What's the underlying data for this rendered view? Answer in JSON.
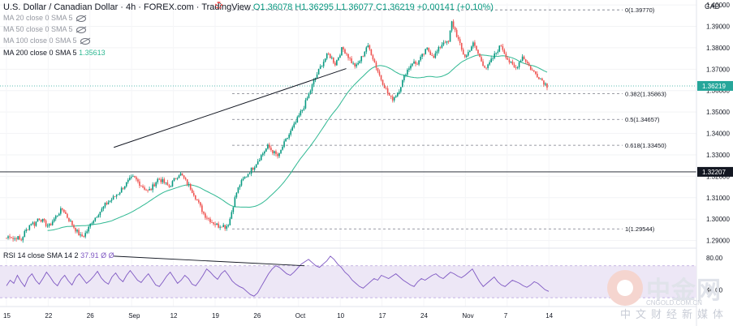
{
  "header": {
    "title": "U.S. Dollar / Canadian Dollar · 4h · FOREX.com · TradingView",
    "ohlc": "O1.36078 H1.36295 L1.36077 C1.36219 +0.00141 (+0.10%)"
  },
  "indicators": [
    {
      "label": "MA 20 close 0 SMA 5"
    },
    {
      "label": "MA 50 close 0 SMA 5"
    },
    {
      "label": "MA 100 close 0 SMA 5"
    }
  ],
  "ma200": {
    "label": "MA 200 close 0 SMA 5",
    "value": "1.35613"
  },
  "rsi_header": {
    "label": "RSI 14 close SMA 14 2",
    "value": "37.91 Ø Ø"
  },
  "currency": "CAD",
  "watermark": {
    "zh": "中金网",
    "url": "CNGOLD.COM.CN",
    "sub": "中文财经新媒体"
  },
  "colors": {
    "up": "#089981",
    "down": "#ef5350",
    "ma200": "#2fb892",
    "rsi": "#7e57c2",
    "rsi_band": "#ede7f6",
    "price_tag": "#26a69a"
  },
  "chart_data": {
    "type": "candlestick",
    "y_ticks": [
      "1.40000",
      "1.39000",
      "1.38000",
      "1.37000",
      "1.36000",
      "1.35000",
      "1.34000",
      "1.33000",
      "1.32000",
      "1.31000",
      "1.30000",
      "1.29000"
    ],
    "ylim": [
      1.2872,
      1.4008
    ],
    "x_ticks": [
      "15",
      "22",
      "26",
      "Sep",
      "12",
      "19",
      "26",
      "Oct",
      "10",
      "17",
      "24",
      "Nov",
      "7",
      "14"
    ],
    "last_price": "1.36219",
    "horizontal_level": "1.32207",
    "fibonacci": [
      {
        "label": "0(1.39770)",
        "value": 1.3977
      },
      {
        "label": "0.382(1.35863)",
        "value": 1.35863
      },
      {
        "label": "0.5(1.34657)",
        "value": 1.34657
      },
      {
        "label": "0.618(1.33450)",
        "value": 1.3345
      },
      {
        "label": "1(1.29544)",
        "value": 1.29544
      }
    ],
    "trendline": {
      "from": {
        "date": "Sep 20",
        "value": 1.3335
      },
      "to": {
        "date": "Oct 28",
        "value": 1.3703
      }
    },
    "price_path": [
      [
        1.2912,
        1.2925,
        1.2905,
        1.2918,
        1.2896,
        1.2935,
        1.2958,
        1.2985,
        1.2975,
        1.3008,
        1.2995,
        1.2978,
        1.2965,
        1.299
      ],
      [
        1.3012,
        1.3035,
        1.3048,
        1.3015,
        1.299,
        1.2965,
        1.294,
        1.2918,
        1.2925,
        1.295,
        1.2985,
        1.3005,
        1.3028,
        1.3045
      ],
      [
        1.3068,
        1.3082,
        1.3095,
        1.3112,
        1.3128,
        1.315,
        1.3168,
        1.3185,
        1.3195,
        1.3178,
        1.316,
        1.3145,
        1.313,
        1.3142
      ],
      [
        1.3168,
        1.319,
        1.3178,
        1.3165,
        1.315,
        1.3172,
        1.3195,
        1.3215,
        1.3195,
        1.317,
        1.3148,
        1.312,
        1.3085,
        1.3052
      ],
      [
        1.302,
        1.3005,
        1.299,
        1.2978,
        1.2968,
        1.2975,
        1.2962,
        1.2985,
        1.3055,
        1.312,
        1.316,
        1.3185,
        1.3205,
        1.3225
      ],
      [
        1.3245,
        1.327,
        1.3295,
        1.3318,
        1.334,
        1.3322,
        1.3305,
        1.329,
        1.3335,
        1.3365,
        1.3395,
        1.3425,
        1.3455,
        1.349
      ],
      [
        1.352,
        1.356,
        1.36,
        1.3645,
        1.368,
        1.3715,
        1.3745,
        1.377,
        1.3752,
        1.3725,
        1.376,
        1.3798,
        1.378,
        1.3752
      ],
      [
        1.3725,
        1.3712,
        1.374,
        1.377,
        1.381,
        1.3785,
        1.374,
        1.3695,
        1.3655,
        1.362,
        1.3585,
        1.3558,
        1.3575,
        1.36
      ],
      [
        1.364,
        1.3685,
        1.371,
        1.3735,
        1.3722,
        1.3745,
        1.377,
        1.3795,
        1.3775,
        1.376,
        1.3785,
        1.3812,
        1.3835,
        1.3815
      ],
      [
        1.392,
        1.388,
        1.383,
        1.378,
        1.3755,
        1.379,
        1.382,
        1.379,
        1.3752,
        1.372,
        1.3705,
        1.3735,
        1.3762,
        1.379
      ],
      [
        1.3812,
        1.3775,
        1.3742,
        1.372,
        1.37,
        1.373,
        1.376,
        1.374,
        1.371,
        1.369,
        1.3675,
        1.366,
        1.364,
        1.3622
      ]
    ],
    "rsi": {
      "ylim": [
        20,
        90
      ],
      "ticks": [
        "80.00",
        "40.00"
      ],
      "band": [
        30,
        70
      ],
      "values": [
        45,
        52,
        48,
        58,
        50,
        44,
        55,
        60,
        52,
        47,
        54,
        62,
        56,
        49,
        45,
        53,
        58,
        51,
        46,
        55,
        60,
        54,
        48,
        52,
        57,
        63,
        55,
        50,
        47,
        56,
        61,
        54,
        50,
        58,
        64,
        58,
        52,
        49,
        55,
        60,
        53,
        46,
        44,
        50,
        57,
        62,
        55,
        48,
        52,
        58,
        54,
        47,
        45,
        51,
        58,
        66,
        62,
        57,
        53,
        60,
        64,
        58,
        51,
        47,
        44,
        42,
        38,
        34,
        32,
        36,
        44,
        52,
        60,
        66,
        70,
        68,
        64,
        60,
        58,
        62,
        67,
        72,
        75,
        78,
        74,
        70,
        68,
        72,
        76,
        82,
        78,
        72,
        68,
        62,
        58,
        52,
        48,
        44,
        42,
        46,
        50,
        54,
        52,
        58,
        56,
        54,
        57,
        60,
        56,
        52,
        49,
        46,
        44,
        50,
        54,
        52,
        55,
        58,
        60,
        56,
        54,
        58,
        62,
        60,
        57,
        55,
        58,
        62,
        66,
        58,
        50,
        44,
        48,
        52,
        56,
        50,
        46,
        44,
        48,
        52,
        50,
        48,
        45,
        43,
        46,
        50,
        48,
        44,
        40,
        38
      ]
    }
  }
}
